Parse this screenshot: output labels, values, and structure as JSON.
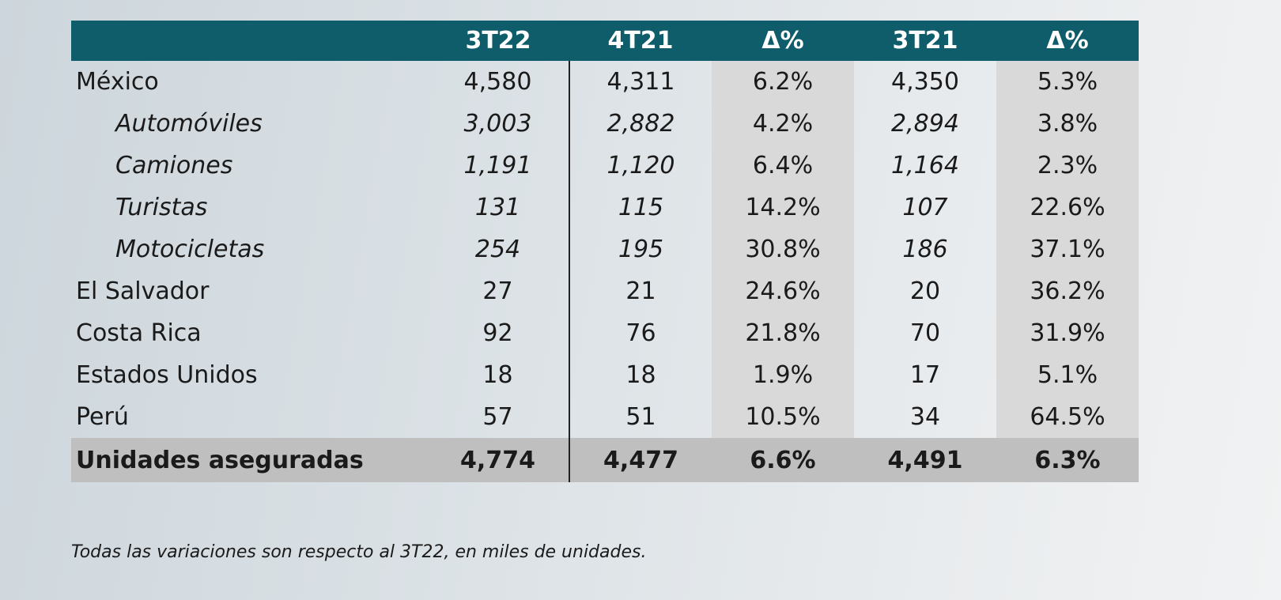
{
  "headers": [
    "",
    "3T22",
    "4T21",
    "Δ%",
    "3T21",
    "Δ%"
  ],
  "rows": [
    {
      "label": "México",
      "sub": false,
      "v1": "4,580",
      "v2": "4,311",
      "d1": "6.2%",
      "v3": "4,350",
      "d2": "5.3%"
    },
    {
      "label": "Automóviles",
      "sub": true,
      "v1": "3,003",
      "v2": "2,882",
      "d1": "4.2%",
      "v3": "2,894",
      "d2": "3.8%"
    },
    {
      "label": "Camiones",
      "sub": true,
      "v1": "1,191",
      "v2": "1,120",
      "d1": "6.4%",
      "v3": "1,164",
      "d2": "2.3%"
    },
    {
      "label": "Turistas",
      "sub": true,
      "v1": "131",
      "v2": "115",
      "d1": "14.2%",
      "v3": "107",
      "d2": "22.6%"
    },
    {
      "label": "Motocicletas",
      "sub": true,
      "v1": "254",
      "v2": "195",
      "d1": "30.8%",
      "v3": "186",
      "d2": "37.1%"
    },
    {
      "label": "El Salvador",
      "sub": false,
      "v1": "27",
      "v2": "21",
      "d1": "24.6%",
      "v3": "20",
      "d2": "36.2%"
    },
    {
      "label": "Costa Rica",
      "sub": false,
      "v1": "92",
      "v2": "76",
      "d1": "21.8%",
      "v3": "70",
      "d2": "31.9%"
    },
    {
      "label": "Estados Unidos",
      "sub": false,
      "v1": "18",
      "v2": "18",
      "d1": "1.9%",
      "v3": "17",
      "d2": "5.1%"
    },
    {
      "label": "Perú",
      "sub": false,
      "v1": "57",
      "v2": "51",
      "d1": "10.5%",
      "v3": "34",
      "d2": "64.5%"
    }
  ],
  "total": {
    "label": "Unidades aseguradas",
    "v1": "4,774",
    "v2": "4,477",
    "d1": "6.6%",
    "v3": "4,491",
    "d2": "6.3%"
  },
  "note": "Todas las variaciones son respecto al 3T22, en miles de unidades.",
  "colors": {
    "header_bg": "#0f5c6b",
    "pct_bg": "#d9d9d9",
    "total_bg": "#bfbfbf"
  }
}
